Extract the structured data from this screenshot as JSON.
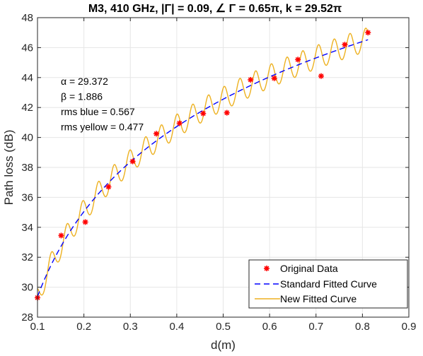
{
  "chart_data": {
    "type": "line",
    "title": "M3, 410 GHz, |Γ| = 0.09, ∠ Γ = 0.65π, k = 29.52π",
    "xlabel": "d(m)",
    "ylabel": "Path loss (dB)",
    "xlim": [
      0.1,
      0.9
    ],
    "ylim": [
      28,
      48
    ],
    "xticks": [
      0.1,
      0.2,
      0.3,
      0.4,
      0.5,
      0.6,
      0.7,
      0.8,
      0.9
    ],
    "xtick_labels": [
      "0.1",
      "0.2",
      "0.3",
      "0.4",
      "0.5",
      "0.6",
      "0.7",
      "0.8",
      "0.9"
    ],
    "yticks": [
      28,
      30,
      32,
      34,
      36,
      38,
      40,
      42,
      44,
      46,
      48
    ],
    "ytick_labels": [
      "28",
      "30",
      "32",
      "34",
      "36",
      "38",
      "40",
      "42",
      "44",
      "46",
      "48"
    ],
    "grid": true,
    "legend_position": "bottom-right",
    "annotations": [
      "α = 29.372",
      "β = 1.886",
      "rms blue = 0.567",
      "rms yellow = 0.477"
    ],
    "series": [
      {
        "name": "Original Data",
        "kind": "scatter",
        "color": "#ff0000",
        "x": [
          0.1,
          0.151,
          0.203,
          0.253,
          0.305,
          0.356,
          0.406,
          0.457,
          0.508,
          0.559,
          0.61,
          0.661,
          0.711,
          0.762,
          0.812
        ],
        "y": [
          29.3,
          33.45,
          34.35,
          36.7,
          38.4,
          40.25,
          40.95,
          41.6,
          41.65,
          43.85,
          43.95,
          45.2,
          44.1,
          46.2,
          47.0
        ]
      },
      {
        "name": "Standard Fitted Curve",
        "kind": "line",
        "style": "dashed",
        "color": "#0000ff",
        "alpha": 29.372,
        "beta": 1.886,
        "x_range": [
          0.1,
          0.812
        ]
      },
      {
        "name": "New Fitted Curve",
        "kind": "line",
        "style": "solid",
        "color": "#edb120",
        "alpha": 29.372,
        "beta": 1.886,
        "gamma_magnitude": 0.09,
        "gamma_phase_pi": 0.65,
        "k_pi": 29.52,
        "x_range": [
          0.1,
          0.812
        ]
      }
    ]
  }
}
